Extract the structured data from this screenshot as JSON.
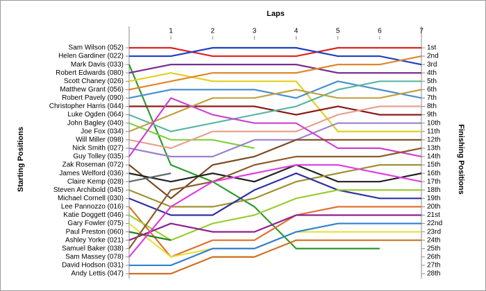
{
  "chart_data": {
    "type": "bump",
    "title": "Laps",
    "y_label": "Starting Positions",
    "y2_label": "Finishing Positions",
    "x": [
      0,
      1,
      2,
      3,
      4,
      5,
      6,
      7
    ],
    "xlim": [
      0,
      7
    ],
    "xticks": [
      1,
      2,
      3,
      4,
      5,
      6,
      7
    ],
    "ylim": [
      1,
      28
    ],
    "y_inverted": true,
    "y2ticks": [
      {
        "value": 1,
        "label": "1st"
      },
      {
        "value": 2,
        "label": "2nd"
      },
      {
        "value": 3,
        "label": "3rd"
      },
      {
        "value": 4,
        "label": "4th"
      },
      {
        "value": 5,
        "label": "5th"
      },
      {
        "value": 6,
        "label": "6th"
      },
      {
        "value": 7,
        "label": "7th"
      },
      {
        "value": 8,
        "label": "8th"
      },
      {
        "value": 9,
        "label": "9th"
      },
      {
        "value": 10,
        "label": "10th"
      },
      {
        "value": 11,
        "label": "11th"
      },
      {
        "value": 12,
        "label": "12th"
      },
      {
        "value": 13,
        "label": "13th"
      },
      {
        "value": 14,
        "label": "14th"
      },
      {
        "value": 15,
        "label": "15th"
      },
      {
        "value": 16,
        "label": "16th"
      },
      {
        "value": 17,
        "label": "17th"
      },
      {
        "value": 18,
        "label": "18th"
      },
      {
        "value": 19,
        "label": "19th"
      },
      {
        "value": 20,
        "label": "20th"
      },
      {
        "value": 21,
        "label": "21st"
      },
      {
        "value": 22,
        "label": "22nd"
      },
      {
        "value": 23,
        "label": "23rd"
      },
      {
        "value": 24,
        "label": "24th"
      },
      {
        "value": 25,
        "label": "25th"
      },
      {
        "value": 26,
        "label": "26th"
      },
      {
        "value": 27,
        "label": "27th"
      },
      {
        "value": 28,
        "label": "28th"
      }
    ],
    "series": [
      {
        "name": "Sam Wilson (052)",
        "color": "#e02020",
        "values": [
          1,
          1,
          2,
          2,
          2,
          1,
          1,
          1
        ]
      },
      {
        "name": "Helen Gardiner (022)",
        "color": "#1f3fbf",
        "values": [
          2,
          2,
          1,
          1,
          1,
          2,
          2,
          3
        ]
      },
      {
        "name": "Mark Davis (033)",
        "color": "#2e9a2e",
        "values": [
          3,
          15,
          17,
          20,
          25,
          25,
          25,
          null
        ]
      },
      {
        "name": "Robert Edwards (080)",
        "color": "#7a2d8f",
        "values": [
          4,
          3,
          3,
          3,
          3,
          4,
          4,
          4
        ]
      },
      {
        "name": "Scott Chaney (026)",
        "color": "#e0d020",
        "values": [
          5,
          4,
          5,
          5,
          5,
          11,
          11,
          11
        ]
      },
      {
        "name": "Matthew Grant (056)",
        "color": "#e0862a",
        "values": [
          6,
          5,
          4,
          4,
          4,
          3,
          3,
          2
        ]
      },
      {
        "name": "Robert Pavely (090)",
        "color": "#4a8fd0",
        "values": [
          7,
          6,
          6,
          6,
          7,
          5,
          6,
          7
        ]
      },
      {
        "name": "Christopher Harris (044)",
        "color": "#8b1a1a",
        "values": [
          8,
          8,
          8,
          8,
          9,
          8,
          9,
          9
        ]
      },
      {
        "name": "Luke Ogden (064)",
        "color": "#5ab5a5",
        "values": [
          9,
          11,
          10,
          9,
          8,
          6,
          5,
          5
        ]
      },
      {
        "name": "John Bagley (040)",
        "color": "#80d040",
        "values": [
          10,
          12,
          12,
          13,
          null,
          null,
          null,
          null
        ]
      },
      {
        "name": "Joe Fox (034)",
        "color": "#c0a040",
        "values": [
          11,
          9,
          7,
          7,
          6,
          7,
          7,
          6
        ]
      },
      {
        "name": "Will Miller (098)",
        "color": "#e8a090",
        "values": [
          12,
          13,
          11,
          11,
          11,
          9,
          8,
          8
        ]
      },
      {
        "name": "Nick Smith (027)",
        "color": "#9a80d0",
        "values": [
          13,
          14,
          14,
          12,
          12,
          10,
          10,
          10
        ]
      },
      {
        "name": "Guy Tolley (035)",
        "color": "#d040d0",
        "values": [
          14,
          7,
          9,
          10,
          10,
          13,
          13,
          14
        ]
      },
      {
        "name": "Zak Roseman (072)",
        "color": "#7a4a20",
        "values": [
          15,
          19,
          15,
          14,
          12,
          12,
          12,
          12
        ]
      },
      {
        "name": "James Welford (036)",
        "color": "#202020",
        "values": [
          16,
          17,
          16,
          17,
          15,
          17,
          17,
          16
        ]
      },
      {
        "name": "Claire Kemp (028)",
        "color": "#5a6a6a",
        "values": [
          17,
          16,
          null,
          null,
          null,
          null,
          null,
          null
        ]
      },
      {
        "name": "Steven Archibold (045)",
        "color": "#a09030",
        "values": [
          18,
          20,
          20,
          19,
          17,
          16,
          15,
          15
        ]
      },
      {
        "name": "Michael Cornell (030)",
        "color": "#3030a0",
        "values": [
          19,
          21,
          21,
          18,
          16,
          18,
          19,
          19
        ]
      },
      {
        "name": "Lee Pannozzo (016)",
        "color": "#e07030",
        "values": [
          20,
          26,
          24,
          24,
          21,
          20,
          20,
          20
        ]
      },
      {
        "name": "Katie Doggett (046)",
        "color": "#9acd32",
        "values": [
          21,
          24,
          22,
          21,
          19,
          18,
          18,
          18
        ]
      },
      {
        "name": "Gary Fowler (075)",
        "color": "#e8e040",
        "values": [
          22,
          26,
          25,
          25,
          23,
          23,
          23,
          23
        ]
      },
      {
        "name": "Paul Preston (060)",
        "color": "#208020",
        "values": [
          23,
          24,
          null,
          null,
          null,
          null,
          null,
          null
        ]
      },
      {
        "name": "Ashley Yorke (021)",
        "color": "#902090",
        "values": [
          24,
          22,
          23,
          23,
          21,
          21,
          21,
          21
        ]
      },
      {
        "name": "Samuel Baker (038)",
        "color": "#8b5a2b",
        "values": [
          25,
          18,
          17,
          15,
          14,
          14,
          14,
          13
        ]
      },
      {
        "name": "Sam Massey (078)",
        "color": "#e040e0",
        "values": [
          26,
          20,
          17,
          16,
          15,
          15,
          16,
          17
        ]
      },
      {
        "name": "David Hodson (031)",
        "color": "#3080d0",
        "values": [
          27,
          27,
          25,
          25,
          23,
          22,
          22,
          22
        ]
      },
      {
        "name": "Andy Lettis (047)",
        "color": "#d07020",
        "values": [
          28,
          28,
          26,
          26,
          24,
          24,
          24,
          24
        ]
      }
    ]
  }
}
